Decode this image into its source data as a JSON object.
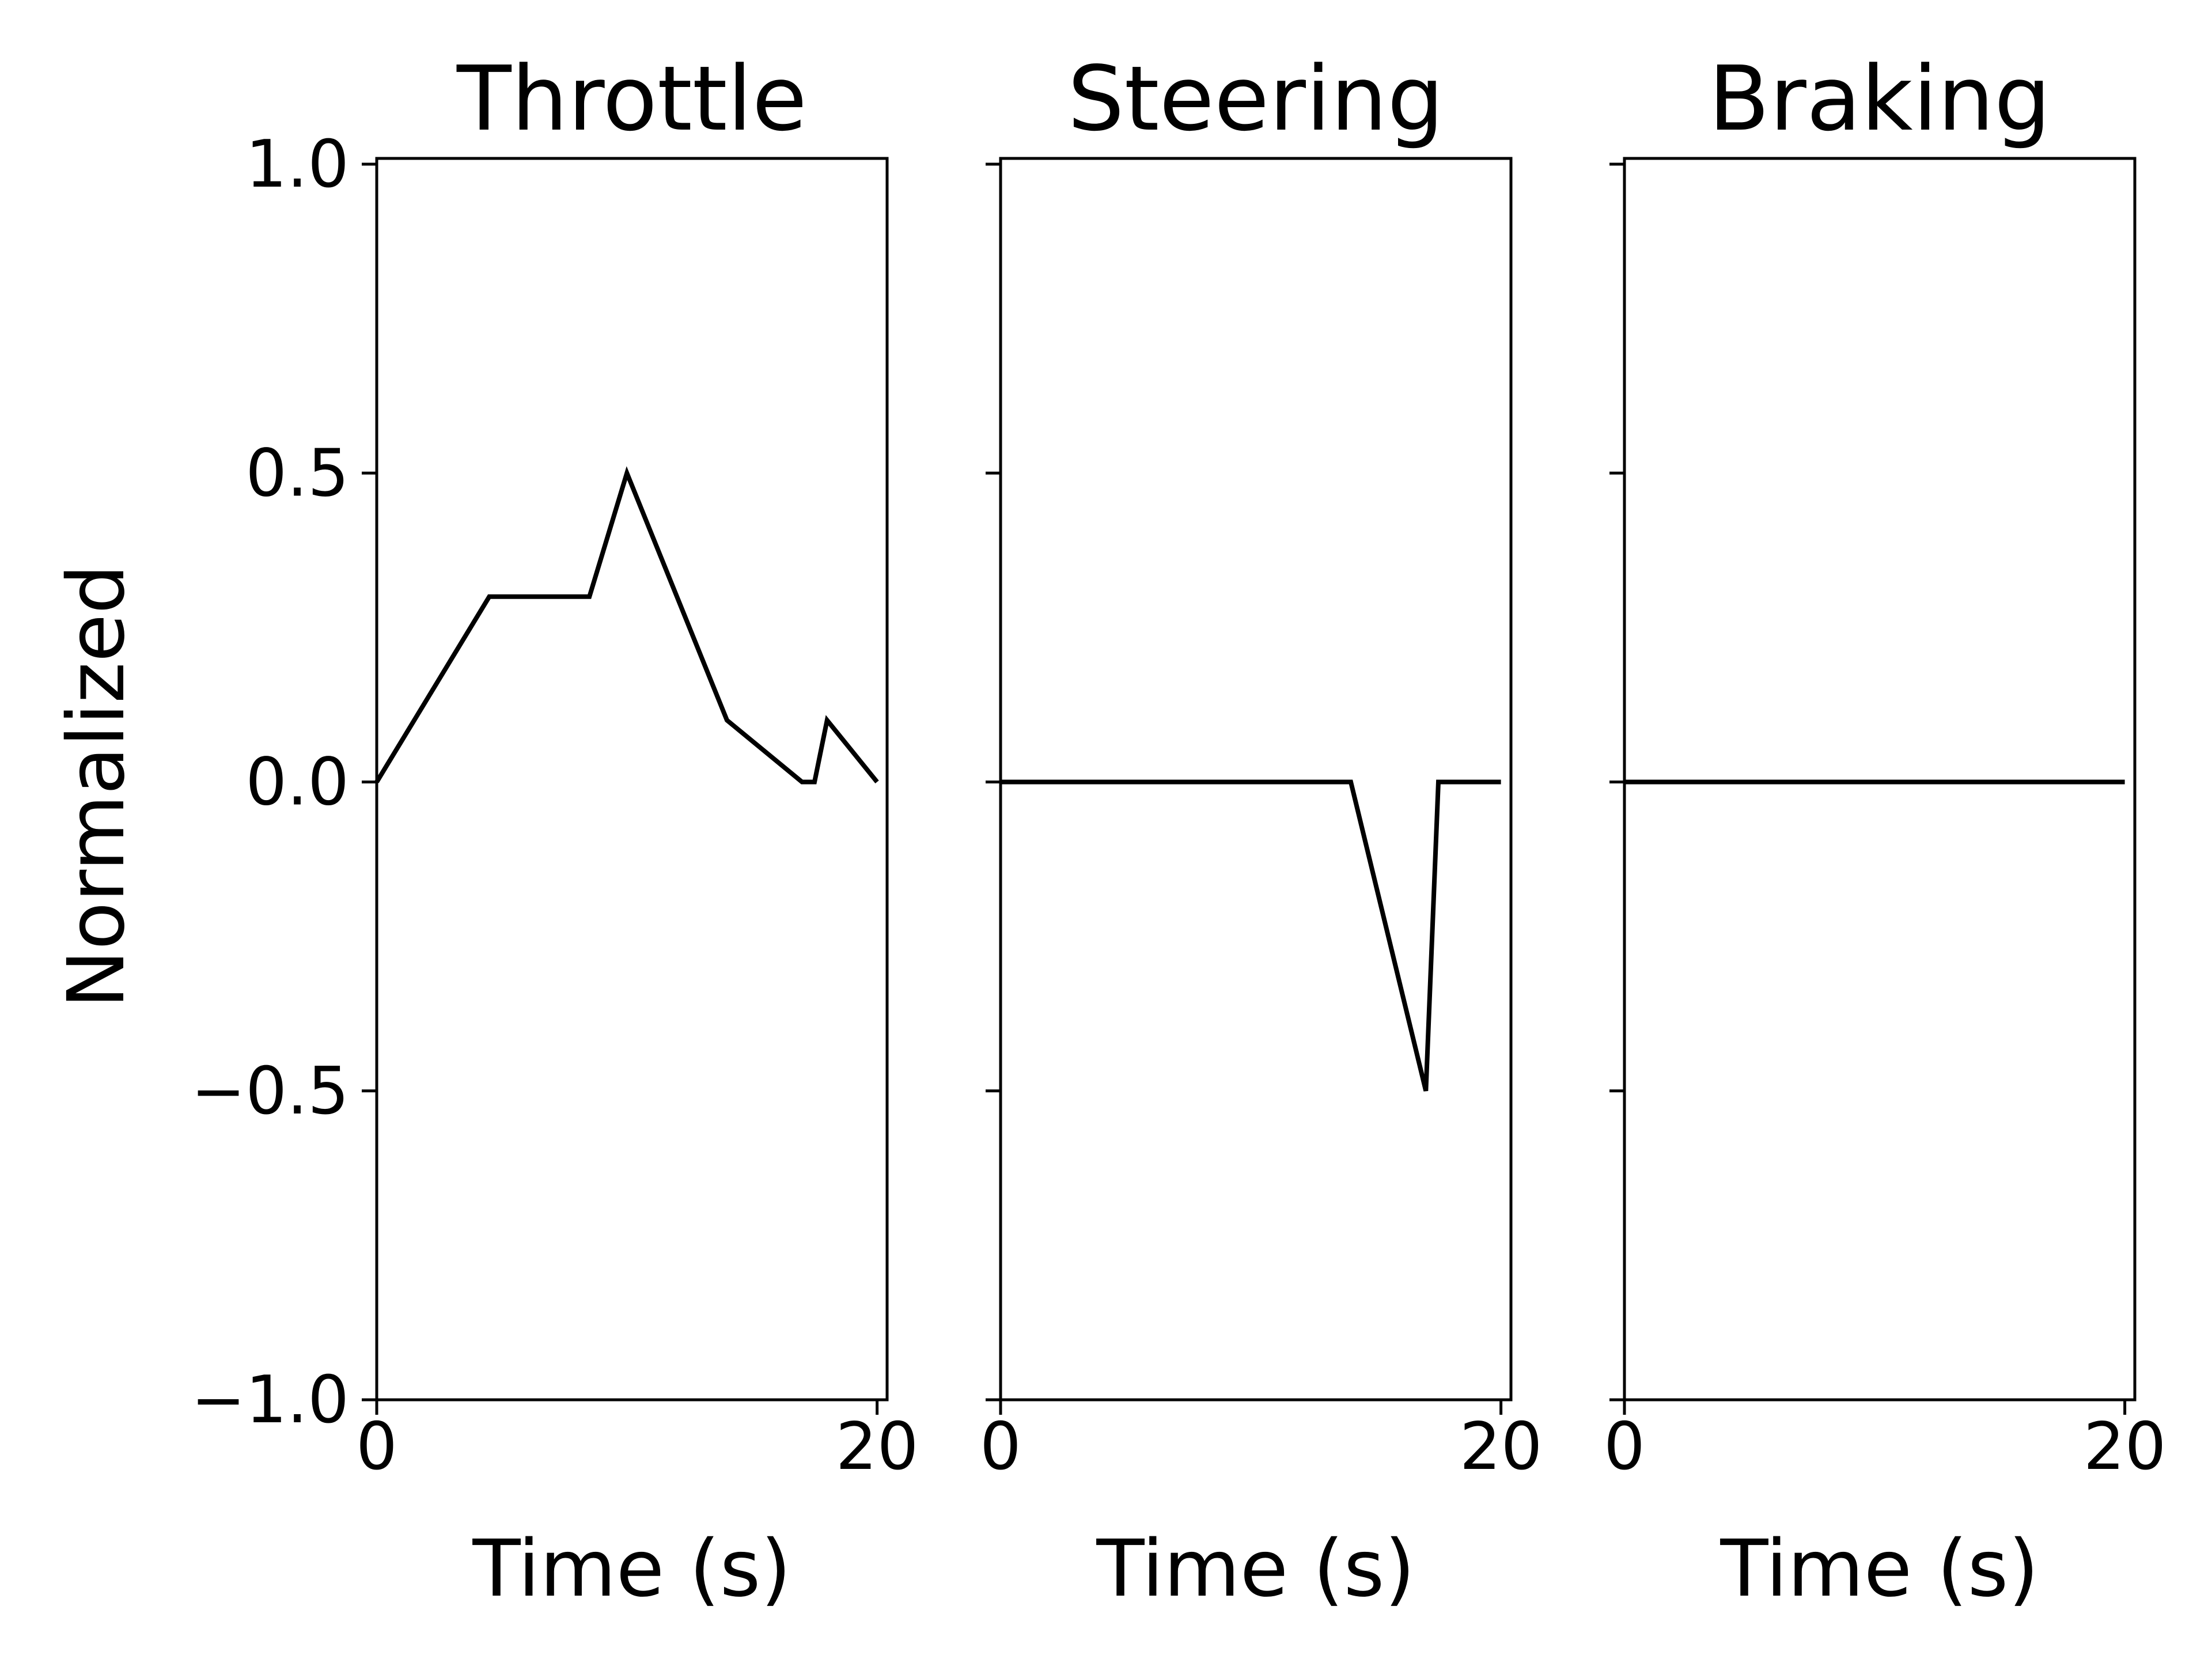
{
  "chart_data": {
    "type": "line",
    "layout": "1x3 subplots, shared y-axis",
    "ylabel": "Normalized",
    "ylim": [
      -1.0,
      1.0
    ],
    "yticks": [
      1.0,
      0.5,
      0.0,
      -0.5,
      -1.0
    ],
    "ytick_labels": [
      "1.0",
      "0.5",
      "0.0",
      "−0.5",
      "−1.0"
    ],
    "line_color": "#000000",
    "panels": [
      {
        "title": "Throttle",
        "xlabel": "Time (s)",
        "xlim": [
          0,
          20.4
        ],
        "xticks": [
          0,
          20
        ],
        "xtick_labels": [
          "0",
          "20"
        ],
        "series": [
          {
            "name": "Throttle",
            "x": [
              0,
              4.5,
              8.5,
              10,
              14,
              17,
              17.5,
              18,
              20
            ],
            "y": [
              0,
              0.3,
              0.3,
              0.5,
              0.1,
              0,
              0,
              0.1,
              0
            ]
          }
        ]
      },
      {
        "title": "Steering",
        "xlabel": "Time (s)",
        "xlim": [
          0,
          20.4
        ],
        "xticks": [
          0,
          20
        ],
        "xtick_labels": [
          "0",
          "20"
        ],
        "series": [
          {
            "name": "Steering",
            "x": [
              0,
              14,
              17,
              17.5,
              20
            ],
            "y": [
              0,
              0,
              -0.5,
              0,
              0
            ]
          }
        ]
      },
      {
        "title": "Braking",
        "xlabel": "Time (s)",
        "xlim": [
          0,
          20.4
        ],
        "xticks": [
          0,
          20
        ],
        "xtick_labels": [
          "0",
          "20"
        ],
        "series": [
          {
            "name": "Braking",
            "x": [
              0,
              20
            ],
            "y": [
              0,
              0
            ]
          }
        ]
      }
    ]
  }
}
